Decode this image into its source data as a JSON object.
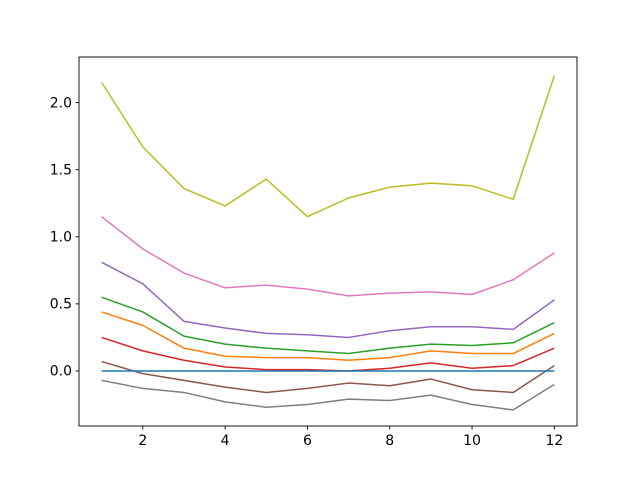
{
  "figure": {
    "background": "#ffffff",
    "axis_color": "#000000",
    "tick_label_color": "#000000"
  },
  "chart_data": {
    "type": "line",
    "grid": false,
    "legend": null,
    "x": [
      1,
      2,
      3,
      4,
      5,
      6,
      7,
      8,
      9,
      10,
      11,
      12
    ],
    "xlim": [
      0.45,
      12.55
    ],
    "ylim": [
      -0.41,
      2.34
    ],
    "xticks": {
      "values": [
        2,
        4,
        6,
        8,
        10,
        12
      ],
      "labels": [
        "2",
        "4",
        "6",
        "8",
        "10",
        "12"
      ]
    },
    "yticks": {
      "values": [
        0.0,
        0.5,
        1.0,
        1.5,
        2.0
      ],
      "labels": [
        "0.0",
        "0.5",
        "1.0",
        "1.5",
        "2.0"
      ]
    },
    "series": [
      {
        "name": "orange",
        "color": "#ff7f0e",
        "values": [
          0.44,
          0.34,
          0.17,
          0.11,
          0.1,
          0.1,
          0.08,
          0.1,
          0.15,
          0.13,
          0.13,
          0.28
        ]
      },
      {
        "name": "green",
        "color": "#2ca02c",
        "values": [
          0.55,
          0.44,
          0.26,
          0.2,
          0.17,
          0.15,
          0.13,
          0.17,
          0.2,
          0.19,
          0.21,
          0.36
        ]
      },
      {
        "name": "red",
        "color": "#d62728",
        "values": [
          0.25,
          0.15,
          0.08,
          0.03,
          0.01,
          0.01,
          0.0,
          0.02,
          0.06,
          0.02,
          0.04,
          0.17
        ]
      },
      {
        "name": "purple",
        "color": "#9467bd",
        "values": [
          0.81,
          0.65,
          0.37,
          0.32,
          0.28,
          0.27,
          0.25,
          0.3,
          0.33,
          0.33,
          0.31,
          0.53
        ]
      },
      {
        "name": "brown",
        "color": "#8c564b",
        "values": [
          0.07,
          -0.02,
          -0.07,
          -0.12,
          -0.16,
          -0.13,
          -0.09,
          -0.11,
          -0.06,
          -0.14,
          -0.16,
          0.04
        ]
      },
      {
        "name": "pink",
        "color": "#e377c2",
        "values": [
          1.15,
          0.91,
          0.73,
          0.62,
          0.64,
          0.61,
          0.56,
          0.58,
          0.59,
          0.57,
          0.68,
          0.88
        ]
      },
      {
        "name": "gray",
        "color": "#7f7f7f",
        "values": [
          -0.07,
          -0.13,
          -0.16,
          -0.23,
          -0.27,
          -0.25,
          -0.21,
          -0.22,
          -0.18,
          -0.25,
          -0.29,
          -0.1
        ]
      },
      {
        "name": "olive",
        "color": "#bcbd22",
        "values": [
          2.15,
          1.67,
          1.36,
          1.23,
          1.43,
          1.15,
          1.29,
          1.37,
          1.4,
          1.38,
          1.28,
          2.2
        ]
      },
      {
        "name": "blue",
        "color": "#1f77b4",
        "values": [
          0.0,
          0.0,
          0.0,
          0.0,
          0.0,
          0.0,
          0.0,
          0.0,
          0.0,
          0.0,
          0.0,
          0.0
        ]
      }
    ]
  }
}
